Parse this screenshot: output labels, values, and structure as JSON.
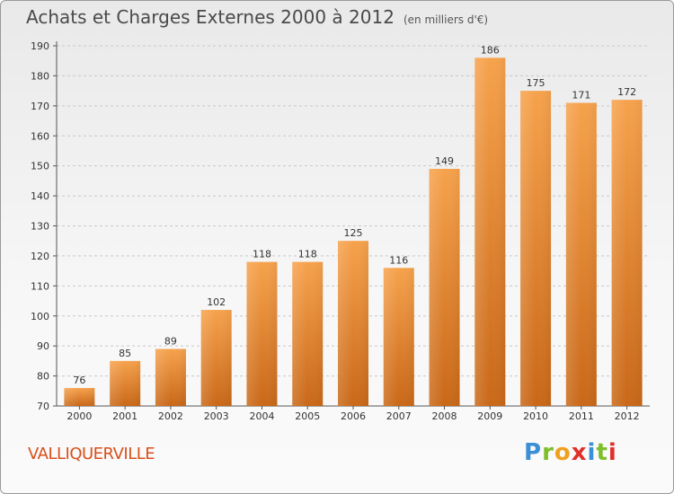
{
  "title": "Achats et Charges Externes 2000 à 2012",
  "subtitle": "(en milliers d'€)",
  "commune": "VALLIQUERVILLE",
  "logo": {
    "letters": [
      "P",
      "r",
      "o",
      "x",
      "i",
      "t",
      "i"
    ],
    "colors": [
      "#3a8fd6",
      "#7cbf2a",
      "#f0a020",
      "#e0302a",
      "#3a8fd6",
      "#7cbf2a",
      "#e0302a"
    ]
  },
  "colors": {
    "bar_light": "#f6a24c",
    "bar_dark": "#c96818",
    "title": "#4a4a4a",
    "commune": "#d8501a"
  },
  "chart_data": {
    "type": "bar",
    "title": "Achats et Charges Externes 2000 à 2012",
    "subtitle": "(en milliers d'€)",
    "xlabel": "",
    "ylabel": "",
    "categories": [
      "2000",
      "2001",
      "2002",
      "2003",
      "2004",
      "2005",
      "2006",
      "2007",
      "2008",
      "2009",
      "2010",
      "2011",
      "2012"
    ],
    "values": [
      76,
      85,
      89,
      102,
      118,
      118,
      125,
      116,
      149,
      186,
      175,
      171,
      172
    ],
    "ylim": [
      70,
      190
    ],
    "yticks": [
      70,
      80,
      90,
      100,
      110,
      120,
      130,
      140,
      150,
      160,
      170,
      180,
      190
    ],
    "grid": true
  }
}
